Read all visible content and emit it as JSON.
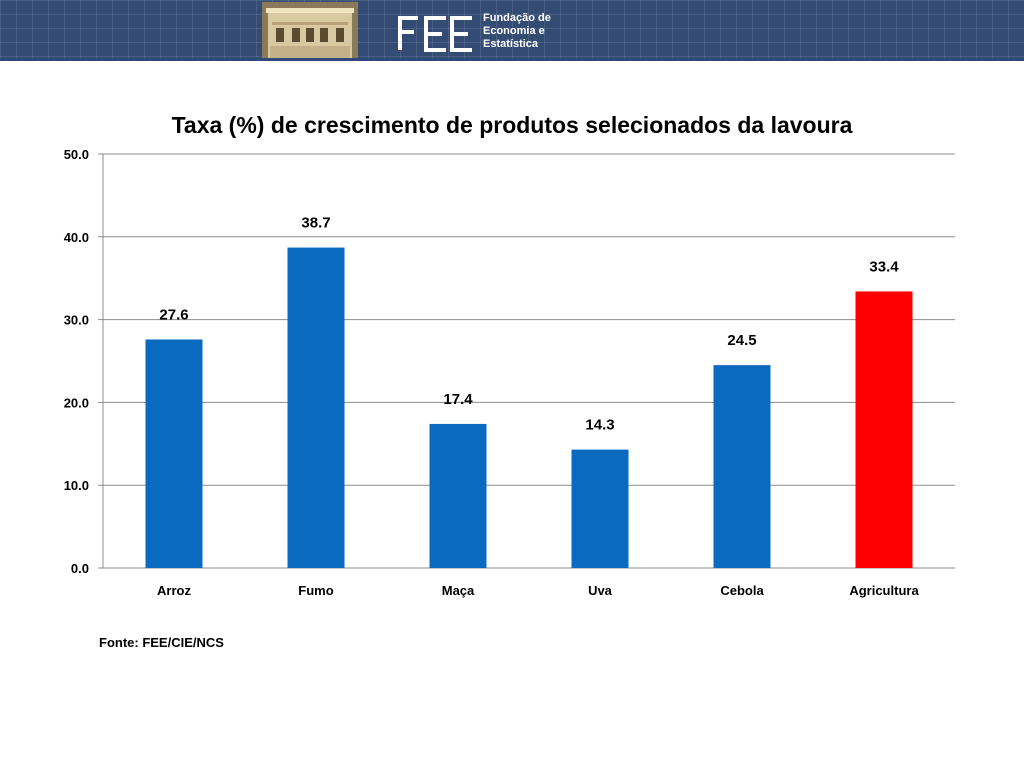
{
  "header": {
    "org_line1": "Fundação de",
    "org_line2": "Economia e",
    "org_line3": "Estatística",
    "logo_text": "FEE"
  },
  "source": "Fonte: FEE/CIE/NCS",
  "chart_data": {
    "type": "bar",
    "title": "Taxa (%) de crescimento de produtos selecionados da lavoura",
    "xlabel": "",
    "ylabel": "",
    "categories": [
      "Arroz",
      "Fumo",
      "Maça",
      "Uva",
      "Cebola",
      "Agricultura"
    ],
    "values": [
      27.6,
      38.7,
      17.4,
      14.3,
      24.5,
      33.4
    ],
    "value_labels": [
      "27.6",
      "38.7",
      "17.4",
      "14.3",
      "24.5",
      "33.4"
    ],
    "bar_colors": [
      "#0a6ac0",
      "#0a6ac0",
      "#0a6ac0",
      "#0a6ac0",
      "#0a6ac0",
      "#ff0000"
    ],
    "ylim": [
      0,
      50
    ],
    "yticks": [
      "0.0",
      "10.0",
      "20.0",
      "30.0",
      "40.0",
      "50.0"
    ],
    "grid": true,
    "legend": "none"
  }
}
